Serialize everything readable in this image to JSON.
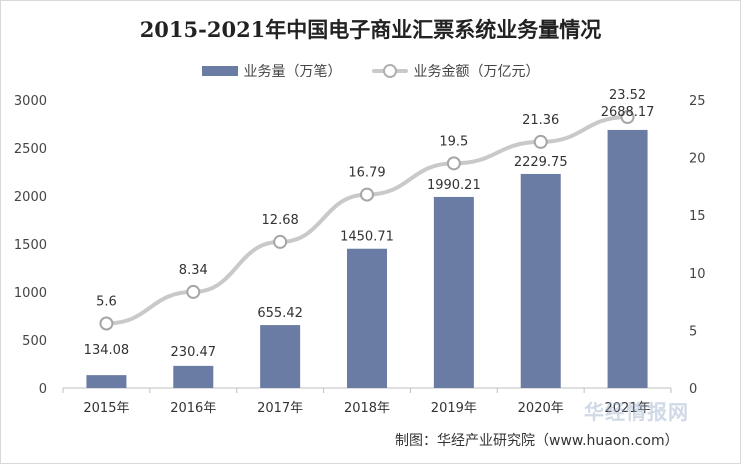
{
  "chart_data": {
    "type": "bar",
    "title": "2015-2021年中国电子商业汇票系统业务量情况",
    "categories": [
      "2015年",
      "2016年",
      "2017年",
      "2018年",
      "2019年",
      "2020年",
      "2021年"
    ],
    "series": [
      {
        "name": "业务量（万笔）",
        "type": "bar",
        "axis": "left",
        "color": "#6a7ca4",
        "values": [
          134.08,
          230.47,
          655.42,
          1450.71,
          1990.21,
          2229.75,
          2688.17
        ],
        "labels": [
          "134.08",
          "230.47",
          "655.42",
          "1450.71",
          "1990.21",
          "2229.75",
          "2688.17"
        ]
      },
      {
        "name": "业务金额（万亿元）",
        "type": "line",
        "axis": "right",
        "color": "#c9c9c9",
        "values": [
          5.6,
          8.34,
          12.68,
          16.79,
          19.5,
          21.36,
          23.52
        ],
        "labels": [
          "5.6",
          "8.34",
          "12.68",
          "16.79",
          "19.5",
          "21.36",
          "23.52"
        ]
      }
    ],
    "ylim_left": [
      0,
      3000
    ],
    "yticks_left": [
      "0",
      "500",
      "1000",
      "1500",
      "2000",
      "2500",
      "3000"
    ],
    "ylim_right": [
      0,
      25
    ],
    "yticks_right": [
      "0",
      "5",
      "10",
      "15",
      "20",
      "25"
    ],
    "grid": false,
    "legend": "top-center"
  },
  "source": "制图：华经产业研究院（www.huaon.com）",
  "watermark": "华经情报网"
}
